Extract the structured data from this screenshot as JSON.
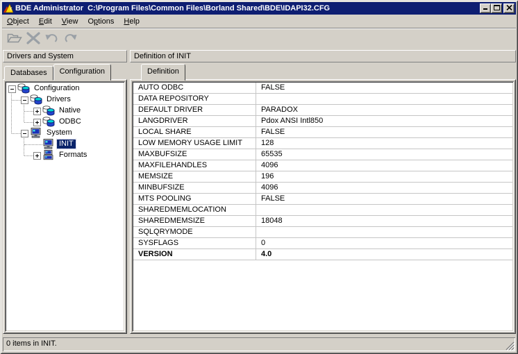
{
  "window": {
    "title": "BDE Administrator  C:\\Program Files\\Common Files\\Borland Shared\\BDE\\IDAPI32.CFG",
    "app_icon": "bde-app-icon",
    "controls": [
      {
        "icon": "minimize-icon",
        "name": "minimize-button"
      },
      {
        "icon": "maximize-icon",
        "name": "maximize-button"
      },
      {
        "icon": "close-icon",
        "name": "close-button"
      }
    ]
  },
  "menu_bar": {
    "items": [
      {
        "label": "Object",
        "accel": 0
      },
      {
        "label": "Edit",
        "accel": 0
      },
      {
        "label": "View",
        "accel": 0
      },
      {
        "label": "Options",
        "accel": 1
      },
      {
        "label": "Help",
        "accel": 0
      }
    ]
  },
  "toolbar": {
    "buttons": [
      {
        "icon": "open-folder-icon",
        "disabled": true
      },
      {
        "icon": "delete-x-icon",
        "disabled": true
      },
      {
        "icon": "undo-icon",
        "disabled": true
      },
      {
        "icon": "redo-icon",
        "disabled": true
      }
    ]
  },
  "left_panel": {
    "header": "Drivers and System",
    "tabs": [
      {
        "label": "Databases",
        "active": false
      },
      {
        "label": "Configuration",
        "active": true
      }
    ],
    "tree": [
      {
        "label": "Configuration",
        "level": 0,
        "expander": "minus",
        "icon": "database-icon",
        "selected": false
      },
      {
        "label": "Drivers",
        "level": 1,
        "expander": "minus",
        "icon": "database-icon",
        "selected": false
      },
      {
        "label": "Native",
        "level": 2,
        "expander": "plus",
        "icon": "database-icon",
        "selected": false
      },
      {
        "label": "ODBC",
        "level": 2,
        "expander": "plus",
        "icon": "database-icon",
        "selected": false
      },
      {
        "label": "System",
        "level": 1,
        "expander": "minus",
        "icon": "computer-icon",
        "selected": false
      },
      {
        "label": "INIT",
        "level": 2,
        "expander": "none",
        "icon": "computer-icon",
        "selected": true
      },
      {
        "label": "Formats",
        "level": 2,
        "expander": "plus",
        "icon": "computer-stack-icon",
        "selected": false
      }
    ]
  },
  "right_panel": {
    "header": "Definition of INIT",
    "tabs": [
      {
        "label": "Definition",
        "active": true
      }
    ],
    "definition_table": {
      "rows": [
        {
          "name": "AUTO ODBC",
          "value": "FALSE",
          "bold": false
        },
        {
          "name": "DATA REPOSITORY",
          "value": "",
          "bold": false
        },
        {
          "name": "DEFAULT DRIVER",
          "value": "PARADOX",
          "bold": false
        },
        {
          "name": "LANGDRIVER",
          "value": "Pdox ANSI Intl850",
          "bold": false
        },
        {
          "name": "LOCAL SHARE",
          "value": "FALSE",
          "bold": false
        },
        {
          "name": "LOW MEMORY USAGE LIMIT",
          "value": "128",
          "bold": false
        },
        {
          "name": "MAXBUFSIZE",
          "value": "65535",
          "bold": false
        },
        {
          "name": "MAXFILEHANDLES",
          "value": "4096",
          "bold": false
        },
        {
          "name": "MEMSIZE",
          "value": "196",
          "bold": false
        },
        {
          "name": "MINBUFSIZE",
          "value": "4096",
          "bold": false
        },
        {
          "name": "MTS POOLING",
          "value": "FALSE",
          "bold": false
        },
        {
          "name": "SHAREDMEMLOCATION",
          "value": "",
          "bold": false
        },
        {
          "name": "SHAREDMEMSIZE",
          "value": "18048",
          "bold": false
        },
        {
          "name": "SQLQRYMODE",
          "value": "",
          "bold": false
        },
        {
          "name": "SYSFLAGS",
          "value": "0",
          "bold": false
        },
        {
          "name": "VERSION",
          "value": "4.0",
          "bold": true
        }
      ]
    }
  },
  "status_bar": {
    "text": "0 items in INIT."
  },
  "colors": {
    "title_bar": "#0e1e72",
    "chrome": "#d4d0c8",
    "selection": "#0a246a",
    "grid_line": "#c5c5c5",
    "tree_db_icon_blue": "#2244cc",
    "tree_icon_cyan": "#00d8d8"
  }
}
